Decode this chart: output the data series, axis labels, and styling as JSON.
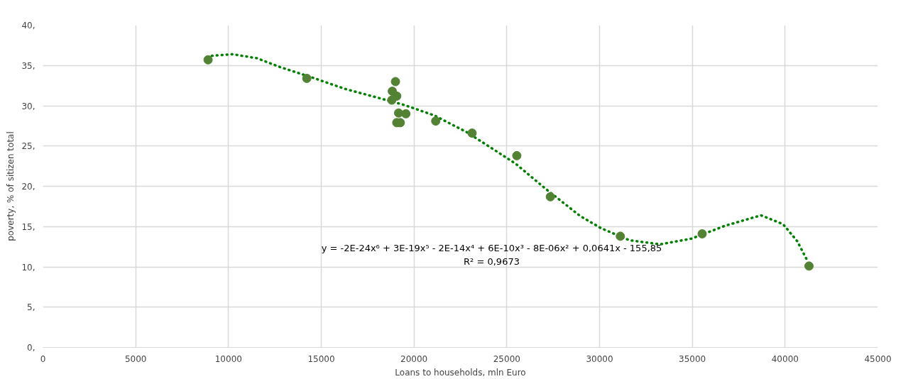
{
  "chart_data": {
    "type": "scatter",
    "xlabel": "Loans to households, mln Euro",
    "ylabel": "poverty, % of sitizen total",
    "xlim": [
      0,
      45000
    ],
    "xticks": [
      0,
      5000,
      10000,
      15000,
      20000,
      25000,
      30000,
      35000,
      40000,
      45000
    ],
    "ylim": [
      0,
      40
    ],
    "yticks": [
      {
        "value": 0,
        "label": "0,"
      },
      {
        "value": 5,
        "label": "5,"
      },
      {
        "value": 10,
        "label": "10,"
      },
      {
        "value": 15,
        "label": "15,"
      },
      {
        "value": 20,
        "label": "20,"
      },
      {
        "value": 25,
        "label": "25,"
      },
      {
        "value": 30,
        "label": "30,"
      },
      {
        "value": 35,
        "label": "35,"
      },
      {
        "value": 40,
        "label": "40,"
      }
    ],
    "grid": true,
    "marker": "circle",
    "series": [
      {
        "color": "#548235",
        "x": [
          8900,
          14220,
          19000,
          18830,
          19070,
          18800,
          19170,
          19560,
          19070,
          19260,
          21170,
          23130,
          25540,
          27350,
          31120,
          35530,
          41290
        ],
        "values": [
          35.7,
          33.4,
          33.0,
          31.8,
          31.2,
          30.7,
          29.1,
          29.0,
          27.9,
          27.9,
          28.1,
          26.6,
          23.8,
          18.7,
          13.8,
          14.1,
          10.1
        ]
      },
      {
        "type": "line",
        "color": "#008000",
        "line_style": "dotted",
        "marker": "none",
        "x": [
          9100,
          10200,
          11530,
          12780,
          14390,
          16270,
          17880,
          19470,
          21090,
          22860,
          24880,
          25480,
          27090,
          28960,
          30080,
          31610,
          33280,
          34950,
          36760,
          38700,
          39890,
          40650,
          41240
        ],
        "values": [
          36.2,
          36.4,
          35.9,
          34.8,
          33.6,
          32.1,
          31.1,
          30.1,
          28.8,
          26.7,
          23.7,
          22.8,
          19.7,
          16.3,
          14.8,
          13.3,
          12.8,
          13.5,
          15.1,
          16.4,
          15.3,
          13.2,
          10.6
        ]
      }
    ],
    "annotations": [
      "y = -2E-24x⁶ + 3E-19x⁵ - 2E-14x⁴ + 6E-10x³ - 8E-06x² + 0,0641x - 155,85",
      "R² = 0,9673"
    ]
  }
}
